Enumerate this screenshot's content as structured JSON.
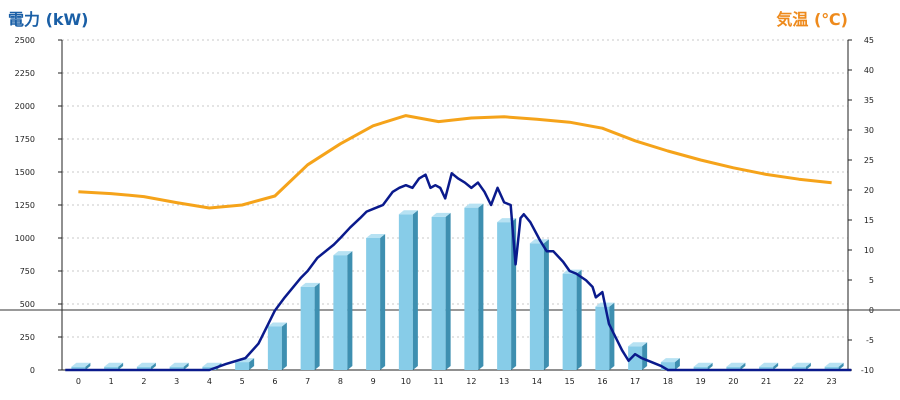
{
  "chart_data": {
    "type": "bar+line",
    "left_axis": {
      "title": "電力 (kW)",
      "color": "#1a5fa6",
      "range": [
        0,
        2500
      ],
      "ticks": [
        0,
        250,
        500,
        750,
        1000,
        1250,
        1500,
        1750,
        2000,
        2250,
        2500
      ]
    },
    "right_axis": {
      "title": "気温 (℃)",
      "color": "#ee8a1c",
      "range": [
        -10,
        45
      ],
      "ticks": [
        -10,
        -5,
        0,
        5,
        10,
        15,
        20,
        25,
        30,
        35,
        40,
        45
      ]
    },
    "categories": [
      "0",
      "1",
      "2",
      "3",
      "4",
      "5",
      "6",
      "7",
      "8",
      "9",
      "10",
      "11",
      "12",
      "13",
      "14",
      "15",
      "16",
      "17",
      "18",
      "19",
      "20",
      "21",
      "22",
      "23"
    ],
    "bar_series": {
      "color": "#87cce8",
      "values": [
        25,
        25,
        25,
        25,
        25,
        60,
        330,
        630,
        870,
        1000,
        1180,
        1160,
        1230,
        1120,
        960,
        730,
        480,
        180,
        60,
        25,
        25,
        25,
        25,
        25
      ]
    },
    "line_series": {
      "color": "#0a1a8c",
      "points": [
        [
          -0.4,
          0
        ],
        [
          4,
          0
        ],
        [
          4.5,
          45
        ],
        [
          5.1,
          90
        ],
        [
          5.5,
          200
        ],
        [
          5.8,
          350
        ],
        [
          6,
          450
        ],
        [
          6.3,
          550
        ],
        [
          6.8,
          700
        ],
        [
          7,
          750
        ],
        [
          7.3,
          850
        ],
        [
          7.8,
          950
        ],
        [
          8,
          1000
        ],
        [
          8.3,
          1080
        ],
        [
          8.6,
          1150
        ],
        [
          8.8,
          1200
        ],
        [
          9,
          1220
        ],
        [
          9.3,
          1250
        ],
        [
          9.6,
          1350
        ],
        [
          9.8,
          1380
        ],
        [
          10,
          1400
        ],
        [
          10.2,
          1380
        ],
        [
          10.4,
          1450
        ],
        [
          10.6,
          1480
        ],
        [
          10.75,
          1380
        ],
        [
          10.9,
          1400
        ],
        [
          11.05,
          1380
        ],
        [
          11.2,
          1300
        ],
        [
          11.4,
          1490
        ],
        [
          11.6,
          1450
        ],
        [
          11.8,
          1420
        ],
        [
          12,
          1380
        ],
        [
          12.2,
          1420
        ],
        [
          12.4,
          1350
        ],
        [
          12.6,
          1250
        ],
        [
          12.8,
          1380
        ],
        [
          13,
          1270
        ],
        [
          13.2,
          1250
        ],
        [
          13.35,
          800
        ],
        [
          13.5,
          1150
        ],
        [
          13.6,
          1180
        ],
        [
          13.8,
          1120
        ],
        [
          14.1,
          980
        ],
        [
          14.3,
          900
        ],
        [
          14.5,
          900
        ],
        [
          14.8,
          820
        ],
        [
          15,
          750
        ],
        [
          15.2,
          730
        ],
        [
          15.5,
          680
        ],
        [
          15.7,
          630
        ],
        [
          15.8,
          550
        ],
        [
          16,
          590
        ],
        [
          16.2,
          350
        ],
        [
          16.4,
          250
        ],
        [
          16.6,
          150
        ],
        [
          16.8,
          70
        ],
        [
          17,
          120
        ],
        [
          17.2,
          90
        ],
        [
          17.5,
          60
        ],
        [
          17.8,
          30
        ],
        [
          18,
          0
        ],
        [
          23.6,
          0
        ]
      ]
    },
    "temp_series": {
      "color": "#f5a31a",
      "x": [
        0,
        1,
        2,
        3,
        4,
        5,
        6,
        7,
        8,
        9,
        10,
        11,
        12,
        13,
        14,
        15,
        16,
        17,
        18,
        19,
        20,
        21,
        22,
        23
      ],
      "values": [
        19.7,
        19.4,
        18.9,
        17.9,
        17.0,
        17.5,
        19.0,
        24.2,
        27.7,
        30.7,
        32.4,
        31.4,
        32.0,
        32.2,
        31.8,
        31.3,
        30.3,
        28.2,
        26.5,
        25.0,
        23.7,
        22.6,
        21.8,
        21.2
      ]
    },
    "reference_line_celsius": 0
  }
}
